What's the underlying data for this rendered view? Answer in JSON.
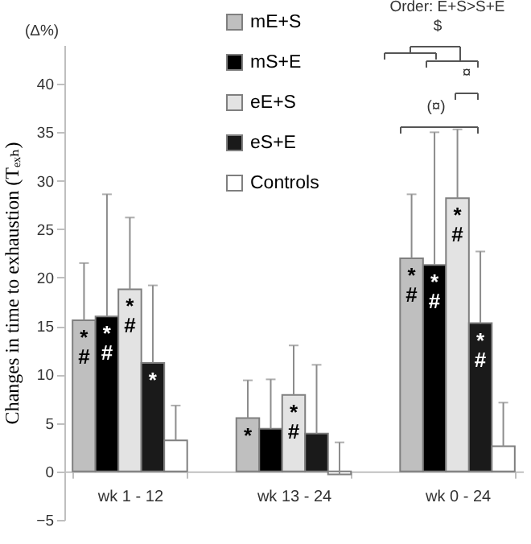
{
  "chart_data": {
    "type": "bar",
    "ylabel": "Changes in time to exhaustion (Tₑₓₕ)",
    "categories": [
      "wk 1 - 12",
      "wk 13 - 24",
      "wk 0 - 24"
    ],
    "series": [
      {
        "name": "mE+S",
        "color": "#bfbfbf",
        "values": [
          15.6,
          5.5,
          22.0
        ],
        "errors": [
          [
            15.6,
            21.5
          ],
          [
            5.5,
            9.4
          ],
          [
            22.0,
            28.6
          ]
        ],
        "value_labels": [
          "*\n#",
          "*",
          "*\n#"
        ]
      },
      {
        "name": "mS+E",
        "color": "#000000",
        "values": [
          16.0,
          4.4,
          21.3
        ],
        "errors": [
          [
            16.0,
            28.6
          ],
          [
            4.4,
            9.5
          ],
          [
            21.3,
            35.0
          ]
        ],
        "value_labels": [
          "*\n#",
          null,
          "*\n#"
        ]
      },
      {
        "name": "eE+S",
        "color": "#e3e3e3",
        "values": [
          18.8,
          7.9,
          28.2
        ],
        "errors": [
          [
            18.8,
            26.2
          ],
          [
            7.9,
            13.0
          ],
          [
            28.2,
            35.3
          ]
        ],
        "value_labels": [
          "*\n#",
          "*\n#",
          "*\n#"
        ]
      },
      {
        "name": "eS+E",
        "color": "#1a1a1a",
        "values": [
          11.2,
          3.9,
          15.3
        ],
        "errors": [
          [
            11.2,
            19.2
          ],
          [
            3.9,
            11.0
          ],
          [
            15.3,
            22.7
          ]
        ],
        "value_labels": [
          "*",
          null,
          "*\n#"
        ]
      },
      {
        "name": "Controls",
        "color": "#ffffff",
        "values": [
          3.2,
          -0.3,
          2.6
        ],
        "errors": [
          [
            3.2,
            6.8
          ],
          [
            -0.3,
            3.0
          ],
          [
            2.6,
            7.1
          ]
        ]
      }
    ],
    "ylim": [
      -5,
      44
    ],
    "yticks": [
      -5,
      0,
      5,
      10,
      15,
      20,
      25,
      30,
      35,
      40
    ],
    "grid": false,
    "legend": "top",
    "annotations": [
      "(Δ%)",
      "Order: E+S>S+E",
      "$",
      "¤",
      "(¤)"
    ]
  }
}
